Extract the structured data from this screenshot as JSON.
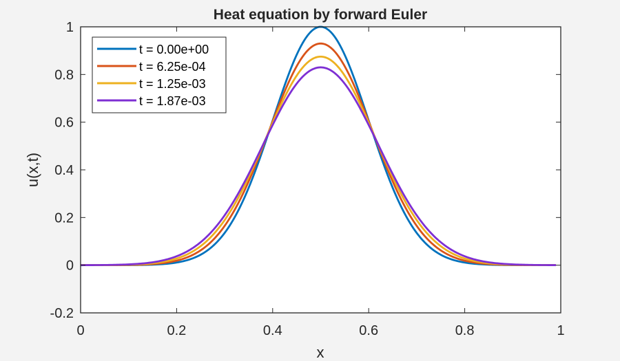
{
  "chart_data": {
    "type": "line",
    "title": "Heat equation by forward Euler",
    "xlabel": "x",
    "ylabel": "u(x,t)",
    "xlim": [
      0,
      1
    ],
    "ylim": [
      -0.2,
      1
    ],
    "xticks": [
      0,
      0.2,
      0.4,
      0.6,
      0.8,
      1
    ],
    "xtick_labels": [
      "0",
      "0.2",
      "0.4",
      "0.6",
      "0.8",
      "1"
    ],
    "yticks": [
      -0.2,
      0,
      0.2,
      0.4,
      0.6,
      0.8,
      1
    ],
    "ytick_labels": [
      "-0.2",
      "0",
      "0.2",
      "0.4",
      "0.6",
      "0.8",
      "1"
    ],
    "grid": false,
    "legend_position": "upper-left",
    "x_range_plotted": [
      0,
      0.99
    ],
    "series": [
      {
        "name": "t = 0.00e+00",
        "t": 0.0,
        "color": "#0072BD",
        "peak": 1.0,
        "x": [
          0,
          0.1,
          0.2,
          0.3,
          0.35,
          0.4,
          0.45,
          0.5,
          0.55,
          0.6,
          0.65,
          0.7,
          0.8,
          0.9,
          0.99
        ],
        "values": [
          0.0,
          0.0003,
          0.011,
          0.135,
          0.325,
          0.607,
          0.882,
          1.0,
          0.882,
          0.607,
          0.325,
          0.135,
          0.011,
          0.0003,
          0.0
        ]
      },
      {
        "name": "t = 6.25e-04",
        "t": 0.000625,
        "color": "#D95319",
        "peak": 0.93,
        "x": [
          0,
          0.1,
          0.2,
          0.3,
          0.35,
          0.4,
          0.45,
          0.5,
          0.55,
          0.6,
          0.65,
          0.7,
          0.8,
          0.9,
          0.99
        ],
        "values": [
          0.0,
          0.0007,
          0.018,
          0.163,
          0.354,
          0.612,
          0.831,
          0.93,
          0.831,
          0.612,
          0.354,
          0.163,
          0.018,
          0.0007,
          0.0
        ]
      },
      {
        "name": "t = 1.25e-03",
        "t": 0.00125,
        "color": "#EDB120",
        "peak": 0.875,
        "x": [
          0,
          0.1,
          0.2,
          0.3,
          0.35,
          0.4,
          0.45,
          0.5,
          0.55,
          0.6,
          0.65,
          0.7,
          0.8,
          0.9,
          0.99
        ],
        "values": [
          0.0,
          0.0013,
          0.025,
          0.185,
          0.37,
          0.608,
          0.795,
          0.875,
          0.795,
          0.608,
          0.37,
          0.185,
          0.025,
          0.0013,
          0.0
        ]
      },
      {
        "name": "t = 1.87e-03",
        "t": 0.001875,
        "color": "#7E2FD3",
        "peak": 0.83,
        "x": [
          0,
          0.1,
          0.2,
          0.3,
          0.35,
          0.4,
          0.45,
          0.5,
          0.55,
          0.6,
          0.65,
          0.7,
          0.8,
          0.9,
          0.99
        ],
        "values": [
          0.0,
          0.0022,
          0.032,
          0.2,
          0.38,
          0.6,
          0.764,
          0.83,
          0.764,
          0.6,
          0.38,
          0.2,
          0.032,
          0.0022,
          0.0
        ]
      }
    ]
  },
  "style": {
    "background": "#f3f3f3",
    "axes_background": "#ffffff",
    "axes_color": "#262626"
  }
}
